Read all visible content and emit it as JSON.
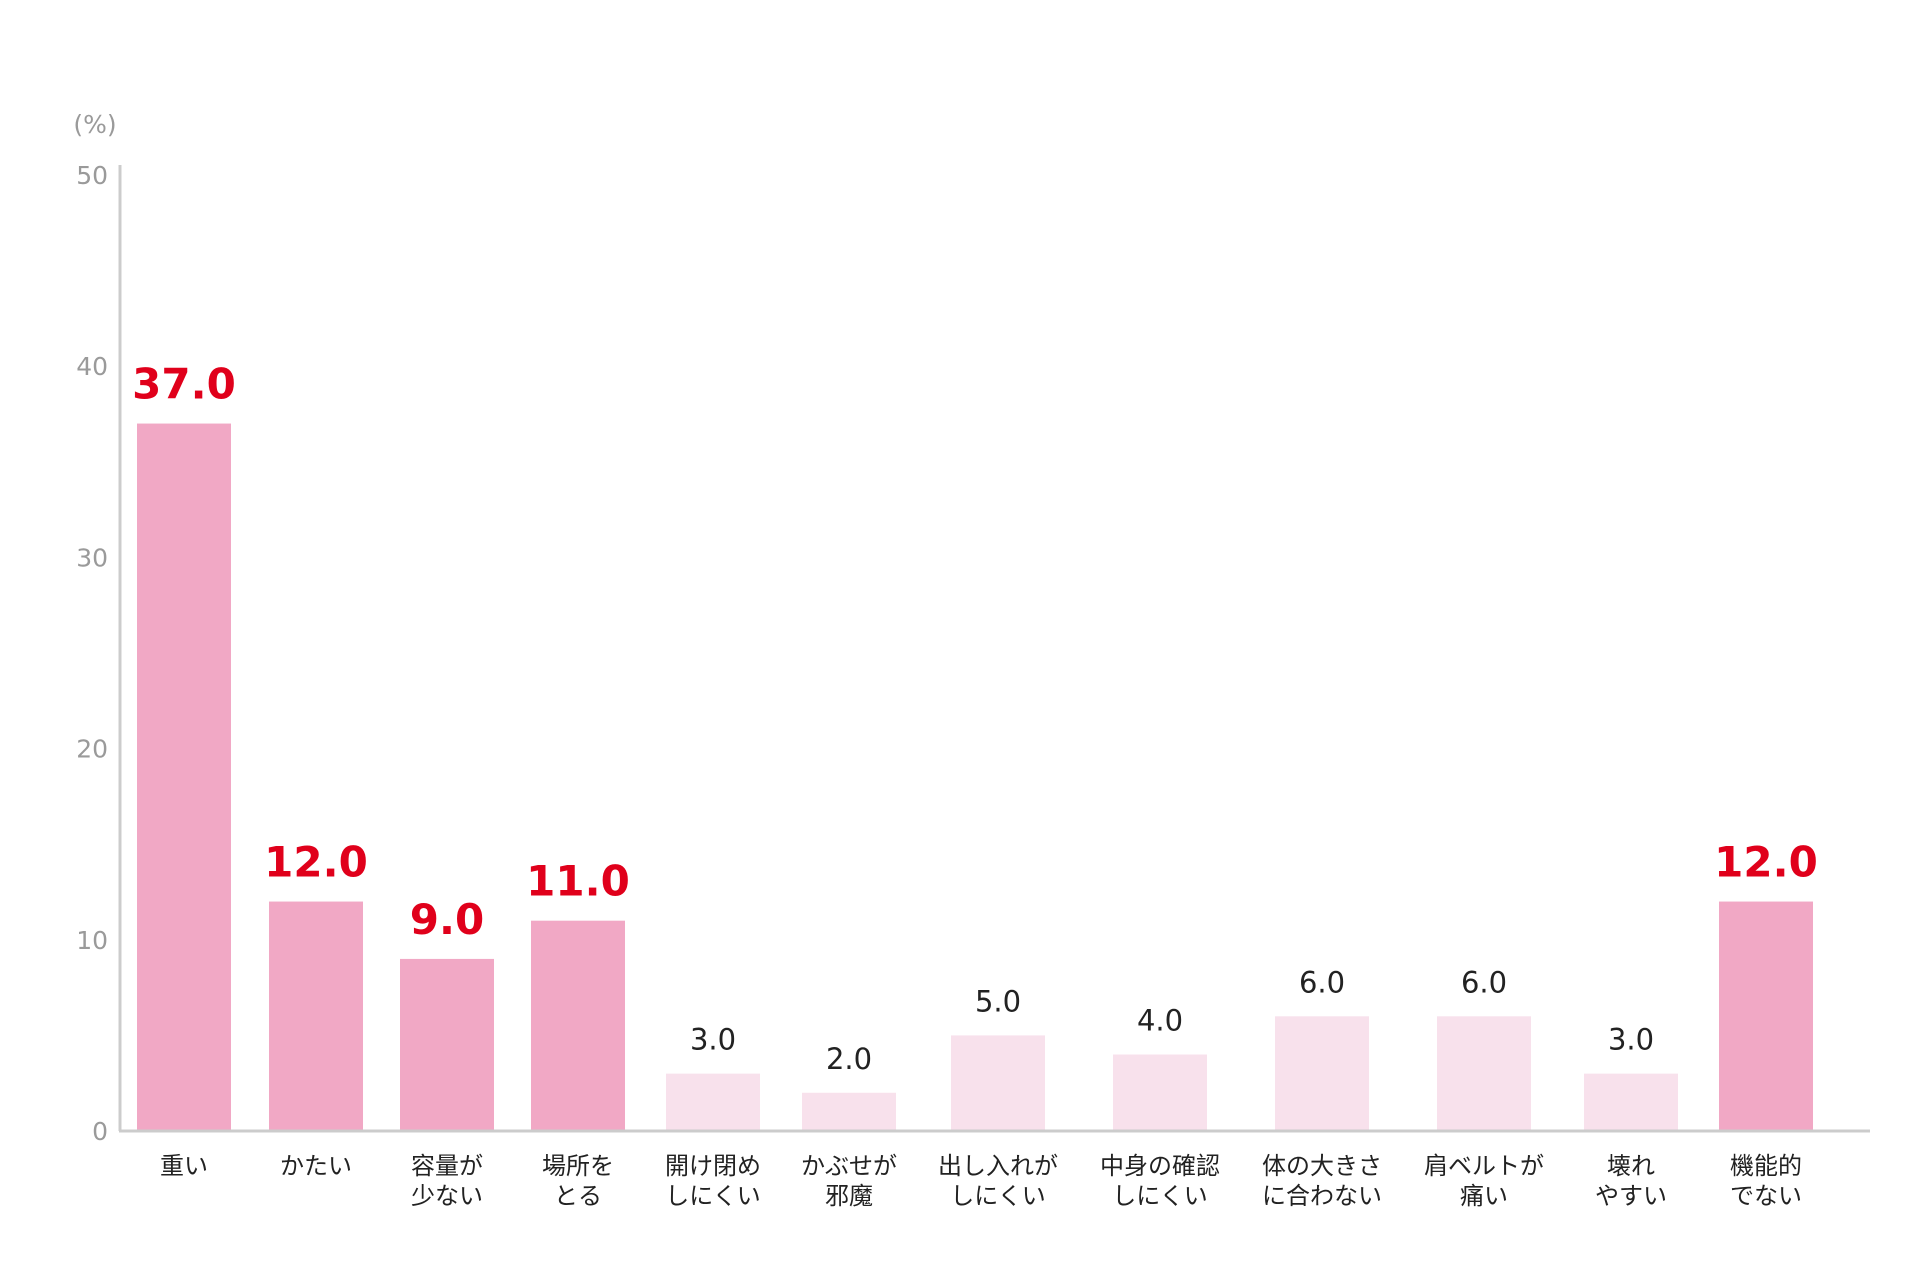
{
  "chart_data": {
    "type": "bar",
    "unit_label": "(%)",
    "y_ticks": [
      "0",
      "10",
      "20",
      "30",
      "40",
      "50"
    ],
    "ylim": [
      0,
      50
    ],
    "grid": false,
    "categories": [
      [
        "重い"
      ],
      [
        "かたい"
      ],
      [
        "容量が",
        "少ない"
      ],
      [
        "場所を",
        "とる"
      ],
      [
        "開け閉め",
        "しにくい"
      ],
      [
        "かぶせが",
        "邪魔"
      ],
      [
        "出し入れが",
        "しにくい"
      ],
      [
        "中身の確認",
        "しにくい"
      ],
      [
        "体の大きさ",
        "に合わない"
      ],
      [
        "肩ベルトが",
        "痛い"
      ],
      [
        "壊れ",
        "やすい"
      ],
      [
        "機能的",
        "でない"
      ]
    ],
    "values": [
      37.0,
      12.0,
      9.0,
      11.0,
      3.0,
      2.0,
      5.0,
      4.0,
      6.0,
      6.0,
      3.0,
      12.0
    ],
    "value_labels": [
      "37.0",
      "12.0",
      "9.0",
      "11.0",
      "3.0",
      "2.0",
      "5.0",
      "4.0",
      "6.0",
      "6.0",
      "3.0",
      "12.0"
    ],
    "highlighted": [
      true,
      true,
      true,
      true,
      false,
      false,
      false,
      false,
      false,
      false,
      false,
      true
    ],
    "colors": {
      "bar_highlight": "#f1a8c5",
      "bar_normal": "#f8e1ec",
      "label_highlight": "#e0001b",
      "label_normal": "#222222",
      "axis": "#cccccc",
      "tick_text": "#9a9a9a"
    }
  }
}
